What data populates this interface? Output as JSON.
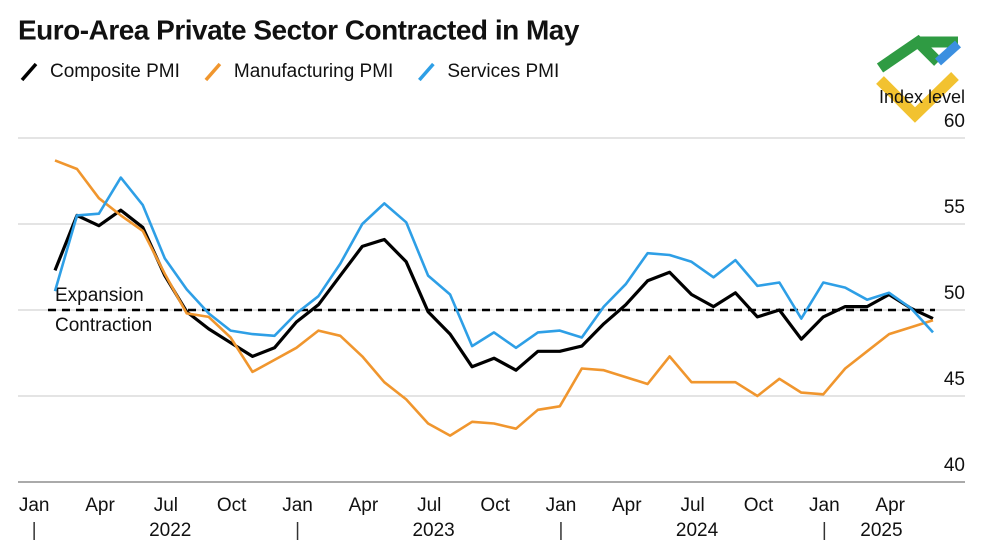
{
  "chart_data": {
    "type": "line",
    "title": "Euro-Area Private Sector Contracted in May",
    "y_label": "Index level",
    "annotations": [
      "Expansion",
      "Contraction"
    ],
    "reference_line": 50,
    "categories": [
      "Jan",
      null,
      null,
      "Apr",
      null,
      null,
      "Jul",
      null,
      null,
      "Oct",
      null,
      null,
      "Jan",
      null,
      null,
      "Apr",
      null,
      null,
      "Jul",
      null,
      null,
      "Oct",
      null,
      null,
      "Jan",
      null,
      null,
      "Apr",
      null,
      null,
      "Jul",
      null,
      null,
      "Oct",
      null,
      null,
      "Jan",
      null,
      null,
      "Apr",
      null
    ],
    "years": [
      "2022",
      "2023",
      "2024",
      "2025"
    ],
    "series": [
      {
        "name": "Composite PMI",
        "color": "#000000",
        "values": [
          52.3,
          55.5,
          54.9,
          55.8,
          54.8,
          52.0,
          49.9,
          48.9,
          48.1,
          47.3,
          47.8,
          49.3,
          50.3,
          52.0,
          53.7,
          54.1,
          52.8,
          49.9,
          48.6,
          46.7,
          47.2,
          46.5,
          47.6,
          47.6,
          47.9,
          49.2,
          50.3,
          51.7,
          52.2,
          50.9,
          50.2,
          51.0,
          49.6,
          50.0,
          48.3,
          49.6,
          50.2,
          50.2,
          50.9,
          50.1,
          49.5
        ]
      },
      {
        "name": "Manufacturing PMI",
        "color": "#f0962e",
        "values": [
          58.7,
          58.2,
          56.5,
          55.5,
          54.6,
          52.1,
          49.8,
          49.6,
          48.4,
          46.4,
          47.1,
          47.8,
          48.8,
          48.5,
          47.3,
          45.8,
          44.8,
          43.4,
          42.7,
          43.5,
          43.4,
          43.1,
          44.2,
          44.4,
          46.6,
          46.5,
          46.1,
          45.7,
          47.3,
          45.8,
          45.8,
          45.8,
          45.0,
          46.0,
          45.2,
          45.1,
          46.6,
          47.6,
          48.6,
          49.0,
          49.4
        ]
      },
      {
        "name": "Services PMI",
        "color": "#2e9fe6",
        "values": [
          51.1,
          55.5,
          55.6,
          57.7,
          56.1,
          53.0,
          51.2,
          49.8,
          48.8,
          48.6,
          48.5,
          49.8,
          50.8,
          52.7,
          55.0,
          56.2,
          55.1,
          52.0,
          50.9,
          47.9,
          48.7,
          47.8,
          48.7,
          48.8,
          48.4,
          50.2,
          51.5,
          53.3,
          53.2,
          52.8,
          51.9,
          52.9,
          51.4,
          51.6,
          49.5,
          51.6,
          51.3,
          50.6,
          51.0,
          50.1,
          48.7
        ]
      }
    ],
    "ylim": [
      40,
      60
    ],
    "yticks": [
      40,
      45,
      50,
      55,
      60
    ],
    "grid": true
  }
}
